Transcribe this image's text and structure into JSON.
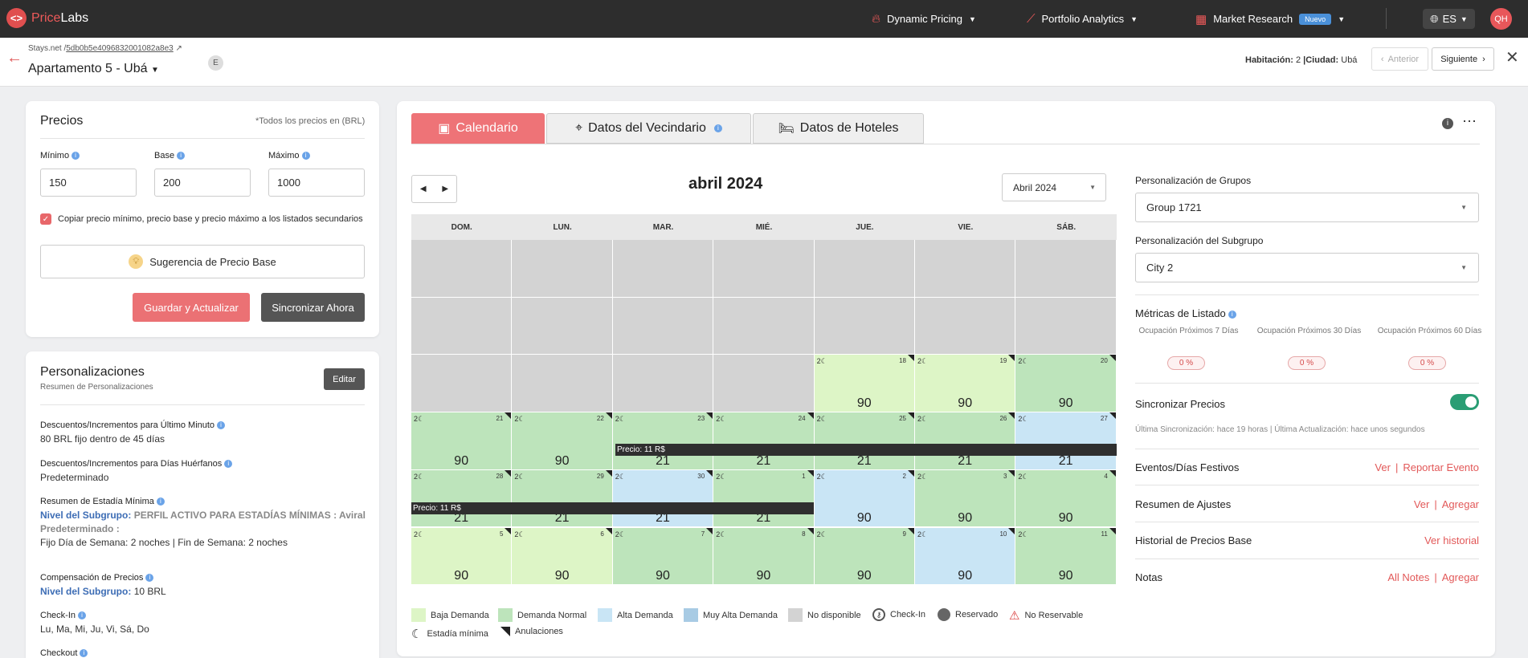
{
  "app": {
    "logo_a": "Price",
    "logo_b": "Labs",
    "logo_icon": "<>"
  },
  "nav": [
    {
      "label": "Dynamic Pricing",
      "icon": "flame-icon"
    },
    {
      "label": "Portfolio Analytics",
      "icon": "trend-icon"
    },
    {
      "label": "Market Research",
      "icon": "grid-icon",
      "badge": "Nuevo"
    }
  ],
  "lang": "ES",
  "user_initials": "QH",
  "listing": {
    "breadcrumb_prefix": "Stays.net /",
    "breadcrumb_id": "5db0b5e4096832001082a8e3",
    "title": "Apartamento 5 - Ubá",
    "chip": "E",
    "room_label": "Habitación:",
    "room_value": "2",
    "city_label": "|Ciudad:",
    "city_value": "Ubá",
    "prev": "Anterior",
    "next": "Siguiente"
  },
  "prices": {
    "title": "Precios",
    "note": "*Todos los precios en (BRL)",
    "min_label": "Mínimo",
    "base_label": "Base",
    "max_label": "Máximo",
    "min": "150",
    "base": "200",
    "max": "1000",
    "copy_label": "Copiar precio mínimo, precio base y precio máximo a los listados secundarios",
    "suggest": "Sugerencia de Precio Base",
    "save": "Guardar y Actualizar",
    "sync": "Sincronizar Ahora"
  },
  "custom": {
    "title": "Personalizaciones",
    "subtitle": "Resumen de Personalizaciones",
    "edit": "Editar",
    "items": [
      {
        "t": "Descuentos/Incrementos para Último Minuto",
        "v": "80 BRL fijo dentro de 45 días"
      },
      {
        "t": "Descuentos/Incrementos para Días Huérfanos",
        "v": "Predeterminado"
      },
      {
        "t": "Resumen de Estadía Mínima",
        "b1": "Nivel del Subgrupo:",
        "g1": "PERFIL ACTIVO PARA ESTADÍAS MÍNIMAS : Aviral",
        "g2": "Predeterminado :",
        "v": "Fijo Día de Semana: 2 noches | Fin de Semana: 2 noches"
      },
      {
        "t": "Compensación de Precios",
        "b1": "Nivel del Subgrupo:",
        "v": "10 BRL"
      },
      {
        "t": "Check-In",
        "v": "Lu, Ma, Mi, Ju, Vi, Sá, Do"
      },
      {
        "t": "Checkout",
        "v": ""
      }
    ]
  },
  "tabs": [
    "Calendario",
    "Datos del Vecindario",
    "Datos de Hoteles"
  ],
  "calendar": {
    "month_title": "abril 2024",
    "month_select": "Abril 2024",
    "dow": [
      "DOM.",
      "LUN.",
      "MAR.",
      "MIÉ.",
      "JUE.",
      "VIE.",
      "SÁB."
    ],
    "price_bar_1": "Precio: 11 R$",
    "price_bar_2": "Precio: 11 R$",
    "colors": {
      "baja": "#ddf5c6",
      "normal": "#bde4bb",
      "alta": "#c9e5f5",
      "muy_alta": "#a8cbe4",
      "na": "#d3d3d3"
    },
    "cells": [
      {
        "d": "",
        "p": "",
        "s": "na"
      },
      {
        "d": "",
        "p": "",
        "s": "na"
      },
      {
        "d": "",
        "p": "",
        "s": "na"
      },
      {
        "d": "",
        "p": "",
        "s": "na"
      },
      {
        "d": "",
        "p": "",
        "s": "na"
      },
      {
        "d": "",
        "p": "",
        "s": "na"
      },
      {
        "d": "",
        "p": "",
        "s": "na"
      },
      {
        "d": "",
        "p": "",
        "s": "na"
      },
      {
        "d": "",
        "p": "",
        "s": "na"
      },
      {
        "d": "",
        "p": "",
        "s": "na"
      },
      {
        "d": "",
        "p": "",
        "s": "na"
      },
      {
        "d": "",
        "p": "",
        "s": "na"
      },
      {
        "d": "",
        "p": "",
        "s": "na"
      },
      {
        "d": "",
        "p": "",
        "s": "na"
      },
      {
        "d": "",
        "p": "",
        "s": "na"
      },
      {
        "d": "",
        "p": "",
        "s": "na"
      },
      {
        "d": "",
        "p": "",
        "s": "na"
      },
      {
        "d": "",
        "p": "",
        "s": "na"
      },
      {
        "d": "18",
        "p": "90",
        "s": "baja"
      },
      {
        "d": "19",
        "p": "90",
        "s": "baja"
      },
      {
        "d": "20",
        "p": "90",
        "s": "normal"
      },
      {
        "d": "21",
        "p": "90",
        "s": "normal"
      },
      {
        "d": "22",
        "p": "90",
        "s": "normal"
      },
      {
        "d": "23",
        "p": "21",
        "s": "normal"
      },
      {
        "d": "24",
        "p": "21",
        "s": "normal"
      },
      {
        "d": "25",
        "p": "21",
        "s": "normal"
      },
      {
        "d": "26",
        "p": "21",
        "s": "normal"
      },
      {
        "d": "27",
        "p": "21",
        "s": "alta"
      },
      {
        "d": "28",
        "p": "21",
        "s": "normal"
      },
      {
        "d": "29",
        "p": "21",
        "s": "normal"
      },
      {
        "d": "30",
        "p": "21",
        "s": "alta"
      },
      {
        "d": "1",
        "p": "21",
        "s": "normal"
      },
      {
        "d": "2",
        "p": "90",
        "s": "alta"
      },
      {
        "d": "3",
        "p": "90",
        "s": "normal"
      },
      {
        "d": "4",
        "p": "90",
        "s": "normal"
      },
      {
        "d": "5",
        "p": "90",
        "s": "baja"
      },
      {
        "d": "6",
        "p": "90",
        "s": "baja"
      },
      {
        "d": "7",
        "p": "90",
        "s": "normal"
      },
      {
        "d": "8",
        "p": "90",
        "s": "normal"
      },
      {
        "d": "9",
        "p": "90",
        "s": "normal"
      },
      {
        "d": "10",
        "p": "90",
        "s": "alta"
      },
      {
        "d": "11",
        "p": "90",
        "s": "normal"
      }
    ],
    "min_stay": "2"
  },
  "legend": {
    "baja": "Baja Demanda",
    "normal": "Demanda Normal",
    "alta": "Alta Demanda",
    "muy_alta": "Muy Alta Demanda",
    "na": "No disponible",
    "checkin": "Check-In",
    "reservado": "Reservado",
    "no_reservable": "No Reservable",
    "estadia": "Estadía mínima",
    "anulaciones": "Anulaciones"
  },
  "right": {
    "grupos_label": "Personalización de Grupos",
    "grupos_value": "Group 1721",
    "subgrupo_label": "Personalización del Subgrupo",
    "subgrupo_value": "City 2",
    "metricas_title": "Métricas de Listado",
    "m7": "Ocupación Próximos 7 Días",
    "m30": "Ocupación Próximos 30 Días",
    "m60": "Ocupación Próximos 60 Días",
    "m7v": "0 %",
    "m30v": "0 %",
    "m60v": "0 %",
    "sync_title": "Sincronizar Precios",
    "sync_status": "Última Sincronización: hace 19 horas | Última Actualización: hace unos segundos",
    "eventos": "Eventos/Días Festivos",
    "eventos_l1": "Ver",
    "eventos_l2": "Reportar Evento",
    "ajustes": "Resumen de Ajustes",
    "ajustes_l1": "Ver",
    "ajustes_l2": "Agregar",
    "historial": "Historial de Precios Base",
    "historial_l1": "Ver historial",
    "notas": "Notas",
    "notas_l1": "All Notes",
    "notas_l2": "Agregar"
  }
}
